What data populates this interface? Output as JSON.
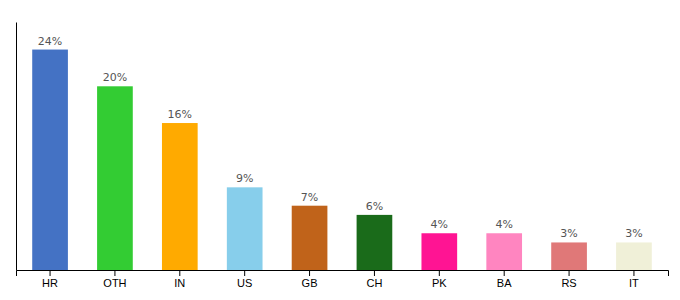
{
  "chart_data": {
    "type": "bar",
    "categories": [
      "HR",
      "OTH",
      "IN",
      "US",
      "GB",
      "CH",
      "PK",
      "BA",
      "RS",
      "IT"
    ],
    "values": [
      24,
      20,
      16,
      9,
      7,
      6,
      4,
      4,
      3,
      3
    ],
    "value_labels": [
      "24%",
      "20%",
      "16%",
      "9%",
      "7%",
      "6%",
      "4%",
      "4%",
      "3%",
      "3%"
    ],
    "colors": [
      "#4472c4",
      "#33cc33",
      "#ffaa00",
      "#87ceeb",
      "#c0631a",
      "#1a6b1a",
      "#ff1493",
      "#ff85c0",
      "#e07878",
      "#f0f0d8"
    ],
    "ylim": [
      0,
      27
    ],
    "data_labels": true,
    "tick_labels": "x"
  }
}
